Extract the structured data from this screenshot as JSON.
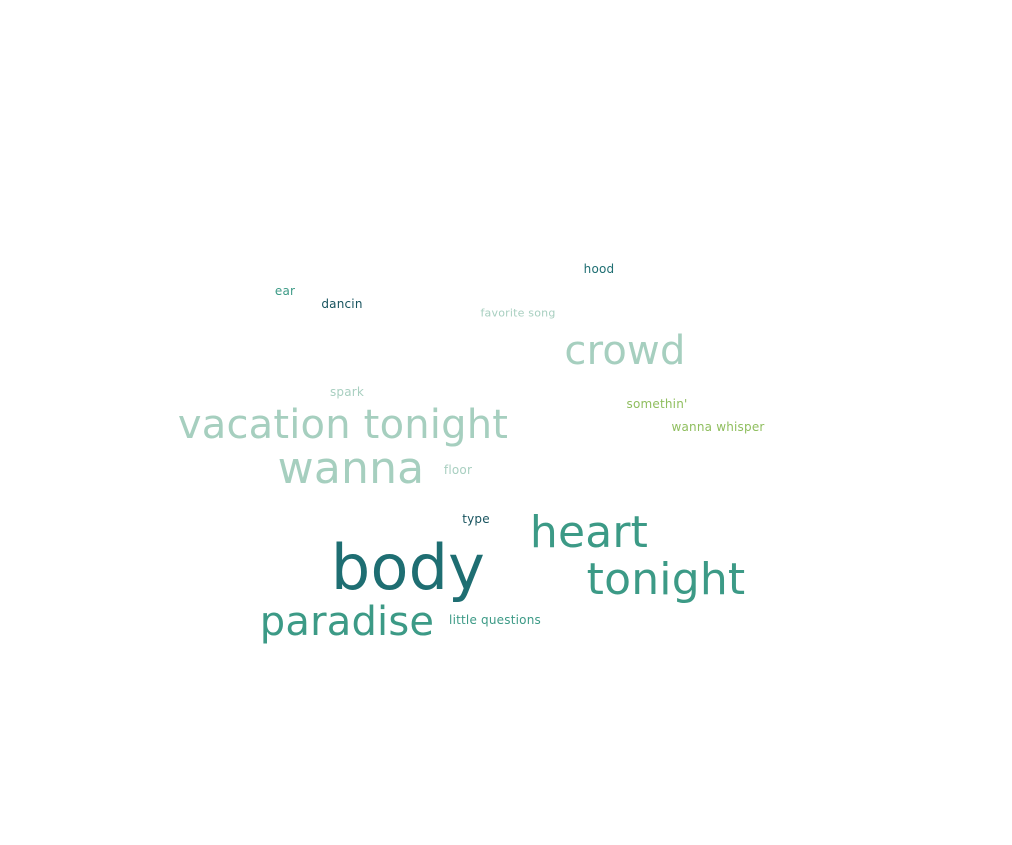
{
  "word_cloud": {
    "words": [
      {
        "id": "hood",
        "text": "hood",
        "color": "#1e6e72"
      },
      {
        "id": "ear",
        "text": "ear",
        "color": "#3c9a86"
      },
      {
        "id": "dancin",
        "text": "dancin",
        "color": "#17535e"
      },
      {
        "id": "favorite",
        "text": "favorite song",
        "color": "#a8cfc0"
      },
      {
        "id": "crowd",
        "text": "crowd",
        "color": "#a6cfbf"
      },
      {
        "id": "spark",
        "text": "spark",
        "color": "#a8cfc0"
      },
      {
        "id": "somethin",
        "text": "somethin'",
        "color": "#8fbe5e"
      },
      {
        "id": "vacation",
        "text": "vacation tonight",
        "color": "#a6cfbf"
      },
      {
        "id": "whisper",
        "text": "wanna whisper",
        "color": "#8fbe5e"
      },
      {
        "id": "wanna",
        "text": "wanna",
        "color": "#a6cfbf"
      },
      {
        "id": "floor",
        "text": "floor",
        "color": "#a8cfc0"
      },
      {
        "id": "type",
        "text": "type",
        "color": "#17535e"
      },
      {
        "id": "heart",
        "text": "heart",
        "color": "#3c9a86"
      },
      {
        "id": "body",
        "text": "body",
        "color": "#1e6e72"
      },
      {
        "id": "tonight",
        "text": "tonight",
        "color": "#3c9a86"
      },
      {
        "id": "paradise",
        "text": "paradise",
        "color": "#3c9a86"
      },
      {
        "id": "little",
        "text": "little questions",
        "color": "#3c9a86"
      }
    ]
  }
}
